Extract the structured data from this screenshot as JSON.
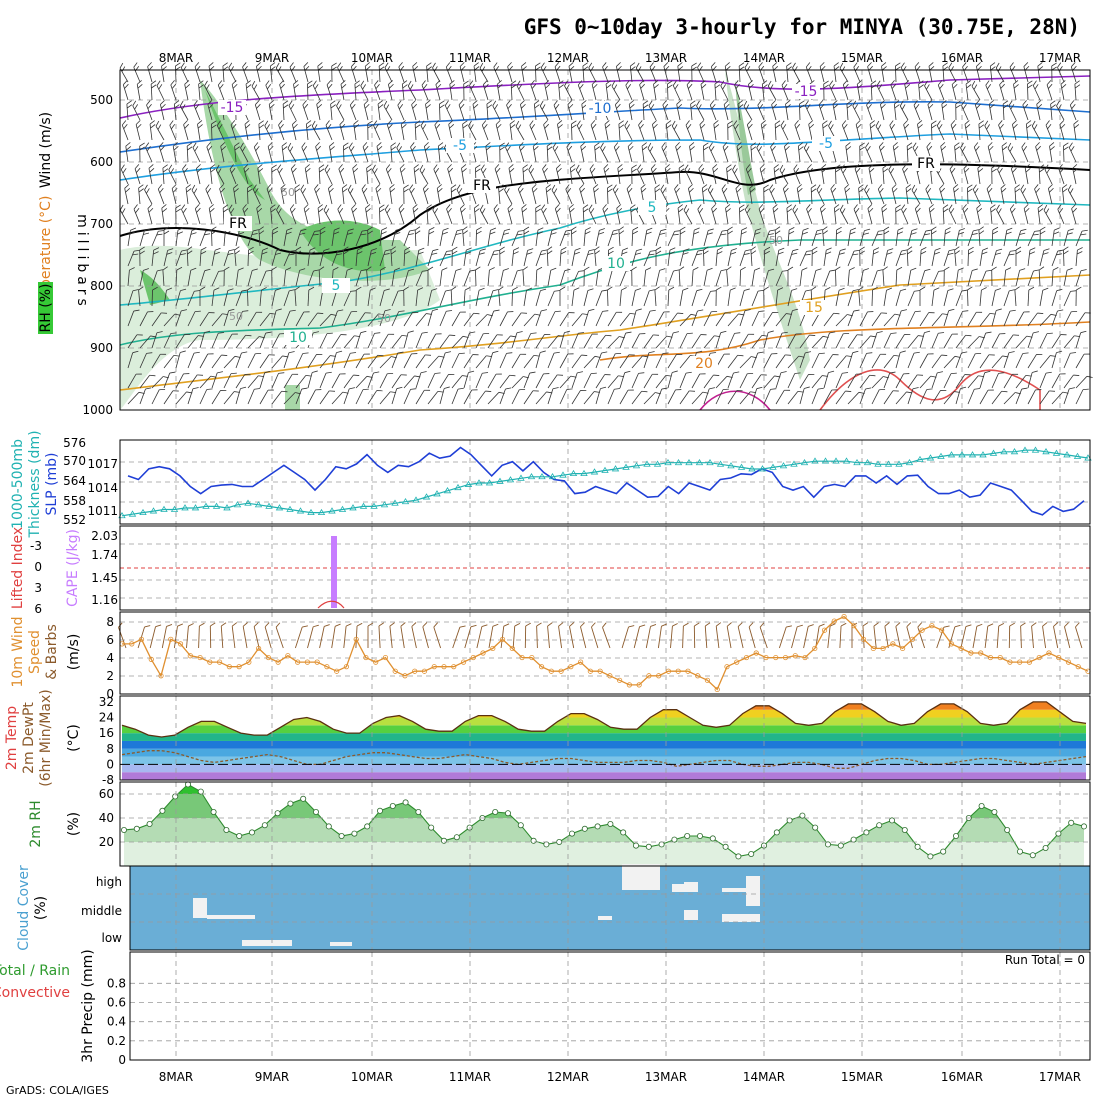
{
  "title": "GFS 0~10day 3-hourly for MINYA (30.75E, 28N)",
  "credit": "GrADS: COLA/IGES",
  "colors": {
    "slp": "#1f3fd6",
    "thickness": "#20b2b2",
    "cape": "#c77dff",
    "lifted_index": "#e04040",
    "wind_speed": "#e09030",
    "barb": "#8b5a2b",
    "rh": "#2e8b2e",
    "cloud_bg": "#6aaed6",
    "temp_isotherm_cold": "#8a20c0",
    "temp_isotherm_cool": "#1e6fd0",
    "temp_isotherm_warm": "#e0a020"
  },
  "x_axis": {
    "ticks": [
      "8MAR",
      "9MAR",
      "10MAR",
      "11MAR",
      "12MAR",
      "13MAR",
      "14MAR",
      "15MAR",
      "16MAR",
      "17MAR"
    ]
  },
  "panels": {
    "upper": {
      "labels": [
        "Wind (m/s)",
        "Temperature (°C)",
        "RH (%)",
        "millibars"
      ],
      "pressure_ticks": [
        "500",
        "600",
        "700",
        "800",
        "900",
        "1000"
      ],
      "isotherm_labels": [
        "-15",
        "-15",
        "-10",
        "-5",
        "-5",
        "FR",
        "FR",
        "FR",
        "5",
        "5",
        "10",
        "10",
        "15",
        "20"
      ],
      "rh_labels": [
        "50",
        "50",
        "50",
        "50"
      ]
    },
    "slp": {
      "labels": [
        "1000-500mb",
        "Thickness (dm)",
        "SLP (mb)"
      ],
      "left_ticks": [
        "576",
        "570",
        "564",
        "558",
        "552"
      ],
      "right_ticks": [
        "1017",
        "1014",
        "1011"
      ]
    },
    "cape": {
      "labels": [
        "Lifted Index",
        "CAPE (J/kg)"
      ],
      "li_ticks": [
        "-3",
        "0",
        "3",
        "6"
      ],
      "cape_ticks": [
        "2.03",
        "1.74",
        "1.45",
        "1.16"
      ]
    },
    "wind10m": {
      "labels": [
        "10m Wind",
        "Speed",
        "& Barbs",
        "(m/s)"
      ],
      "ticks": [
        "8",
        "6",
        "4",
        "2",
        "0"
      ]
    },
    "temp2m": {
      "labels": [
        "2m Temp",
        "2m DewPt",
        "(6hr Min/Max)",
        "(°C)"
      ],
      "ticks": [
        "32",
        "24",
        "16",
        "8",
        "0",
        "-8"
      ]
    },
    "rh2m": {
      "labels": [
        "2m RH",
        "(%)"
      ],
      "ticks": [
        "60",
        "40",
        "20"
      ]
    },
    "cloud": {
      "labels": [
        "Cloud Cover",
        "(%)"
      ],
      "levels": [
        "high",
        "middle",
        "low"
      ]
    },
    "precip": {
      "labels": [
        "Total / Rain",
        "Convective",
        "3hr Precip (mm)"
      ],
      "ticks": [
        "0.8",
        "0.6",
        "0.4",
        "0.2",
        "0"
      ],
      "run_total": "Run Total = 0"
    }
  },
  "chart_data": [
    {
      "type": "line",
      "title": "SLP (mb)",
      "ylim": [
        1009,
        1020
      ],
      "values": [
        1015.5,
        1015,
        1016.5,
        1016.8,
        1016.5,
        1015.5,
        1014,
        1013,
        1014,
        1014.2,
        1014.3,
        1014,
        1014,
        1015,
        1016,
        1017,
        1016,
        1015,
        1013.5,
        1015,
        1016.8,
        1016.5,
        1017.2,
        1018.5,
        1017,
        1016,
        1017,
        1016.8,
        1017.5,
        1018.7,
        1018,
        1018.3,
        1019.5,
        1018.5,
        1017,
        1015.5,
        1017,
        1017.5,
        1016.2,
        1017.5,
        1016,
        1015,
        1014.8,
        1013,
        1013.2,
        1014,
        1013.5,
        1013,
        1014.5,
        1013.5,
        1012.5,
        1012.6,
        1014,
        1013,
        1014.5,
        1014,
        1013.5,
        1015,
        1015.2,
        1015.8,
        1015.7,
        1016.5,
        1016,
        1014,
        1013.5,
        1014,
        1012.5,
        1014,
        1014.3,
        1014,
        1015.5,
        1015.5,
        1014.5,
        1015.5,
        1014.3,
        1015.5,
        1015.6,
        1014,
        1013,
        1013,
        1013.5,
        1012.5,
        1012.8,
        1014.5,
        1014,
        1013.5,
        1012,
        1010.5,
        1010,
        1011.2,
        1010.5,
        1010.8,
        1012
      ]
    },
    {
      "type": "line",
      "title": "1000-500mb Thickness (dm)",
      "ylim": [
        551,
        576
      ],
      "values": [
        553,
        553.5,
        554,
        554.5,
        555,
        555,
        555.5,
        555.5,
        556,
        556,
        555.5,
        556.5,
        557,
        556.5,
        556,
        555.5,
        555,
        554.5,
        554,
        554,
        554.5,
        555,
        555.5,
        556,
        556,
        556.5,
        557,
        557.5,
        558,
        559,
        560,
        561,
        562,
        563,
        563.5,
        563.5,
        564,
        564.5,
        565,
        565.5,
        565.5,
        565.5,
        566,
        566.5,
        566.5,
        567,
        567.5,
        568,
        568.5,
        569,
        569.5,
        569.5,
        570,
        570,
        570,
        570,
        570,
        569.5,
        569,
        568.5,
        568,
        568,
        568.5,
        569,
        569.5,
        570,
        570.5,
        570.5,
        570.5,
        570.5,
        570,
        570,
        569.5,
        569.5,
        569.5,
        570,
        571,
        571.5,
        572,
        572.5,
        572.5,
        572.5,
        572.5,
        573,
        573.5,
        573.5,
        574,
        574,
        573.5,
        573,
        572.5,
        572,
        571.5
      ]
    },
    {
      "type": "bar",
      "title": "CAPE (J/kg)",
      "categories": [
        "9MAR"
      ],
      "values": [
        2.03
      ]
    },
    {
      "type": "line",
      "title": "10m Wind Speed (m/s)",
      "ylim": [
        0,
        9
      ],
      "values": [
        5.5,
        5.5,
        6,
        3.8,
        2,
        6,
        5.5,
        4.2,
        4,
        3.5,
        3.5,
        3,
        3,
        3.5,
        5,
        4,
        3.5,
        4.2,
        3.5,
        3.5,
        3.5,
        3,
        2.5,
        3,
        6,
        4,
        3.5,
        4,
        2.5,
        2,
        2.5,
        2.5,
        3,
        3,
        3,
        3.5,
        4,
        4.5,
        5,
        6,
        5,
        4,
        4,
        3,
        2.5,
        2.5,
        3,
        3.5,
        2.5,
        2.5,
        2,
        1.5,
        1,
        1,
        2,
        2,
        2.5,
        2.5,
        2.5,
        2,
        1.5,
        0.5,
        3,
        3.5,
        4,
        4.5,
        4,
        4,
        4,
        4.2,
        4,
        5,
        7,
        8,
        8.5,
        7.5,
        6,
        5,
        5,
        5.5,
        5,
        6,
        7,
        7.5,
        7,
        5.5,
        5,
        4.5,
        4.5,
        4,
        4,
        3.5,
        3.5,
        3.5,
        4,
        4.5,
        4,
        3.5,
        3,
        2.5
      ]
    },
    {
      "type": "area",
      "title": "2m Temp (°C)",
      "ylim": [
        -8,
        34
      ],
      "values": [
        20,
        18,
        15,
        14,
        15,
        19,
        22,
        22,
        19,
        16,
        15,
        15,
        19,
        23,
        24,
        22,
        18,
        16,
        16,
        21,
        24,
        25,
        22,
        18,
        17,
        17,
        22,
        25,
        25,
        22,
        18,
        17,
        17,
        22,
        26,
        26,
        23,
        19,
        18,
        18,
        24,
        28,
        28,
        24,
        20,
        19,
        20,
        26,
        30,
        30,
        26,
        21,
        20,
        21,
        27,
        31,
        31,
        27,
        22,
        20,
        21,
        27,
        31,
        31,
        27,
        21,
        20,
        21,
        28,
        32,
        32,
        27,
        22,
        21
      ]
    },
    {
      "type": "line",
      "title": "2m DewPt (°C)",
      "ylim": [
        -8,
        34
      ],
      "values": [
        5,
        6,
        7,
        7,
        6,
        4,
        2,
        1,
        2,
        3,
        4,
        5,
        4,
        2,
        0,
        0,
        2,
        4,
        5,
        6,
        6,
        5,
        4,
        3,
        3,
        4,
        5,
        4,
        3,
        1,
        0,
        1,
        2,
        3,
        3,
        2,
        1,
        1,
        1,
        2,
        2,
        1,
        -1,
        0,
        1,
        2,
        2,
        0,
        -1,
        -1,
        0,
        1,
        1,
        0,
        -2,
        -2,
        0,
        2,
        3,
        3,
        2,
        0,
        0,
        1,
        2,
        3,
        3,
        2,
        1,
        0,
        1,
        2,
        3,
        4
      ]
    },
    {
      "type": "area",
      "title": "2m RH (%)",
      "ylim": [
        0,
        70
      ],
      "values": [
        30,
        31,
        35,
        46,
        58,
        68,
        62,
        45,
        30,
        25,
        28,
        34,
        44,
        52,
        56,
        45,
        33,
        25,
        27,
        33,
        46,
        50,
        53,
        45,
        32,
        21,
        24,
        32,
        40,
        45,
        44,
        34,
        21,
        18,
        20,
        27,
        31,
        33,
        35,
        28,
        17,
        16,
        18,
        22,
        25,
        25,
        23,
        16,
        8,
        10,
        17,
        28,
        38,
        42,
        32,
        18,
        17,
        22,
        28,
        34,
        38,
        30,
        16,
        8,
        12,
        25,
        40,
        50,
        45,
        30,
        12,
        9,
        15,
        27,
        36,
        33
      ]
    }
  ]
}
